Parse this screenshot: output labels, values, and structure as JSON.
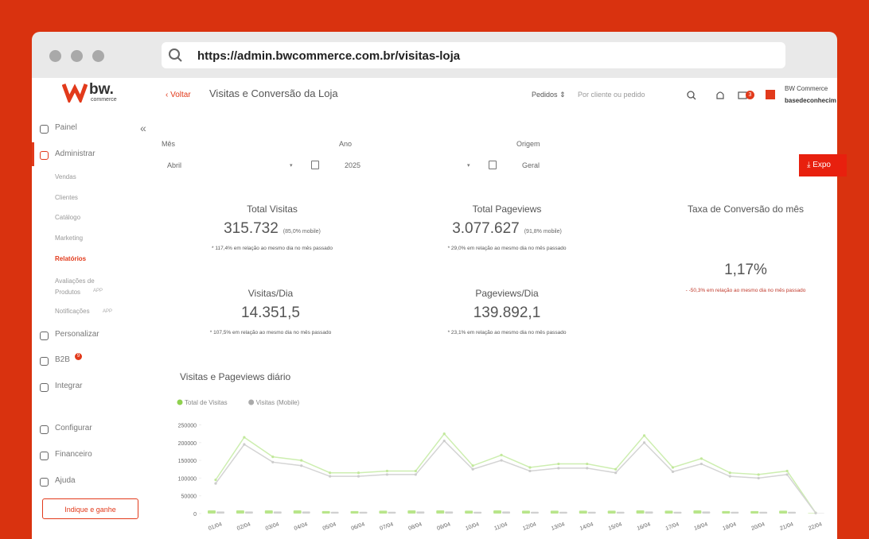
{
  "browser": {
    "url": "https://admin.bwcommerce.com.br/visitas-loja"
  },
  "logo": {
    "mark": "bw.",
    "sub": "commerce"
  },
  "header": {
    "back": "Voltar",
    "title": "Visitas e Conversão da Loja",
    "select": "Pedidos",
    "search_placeholder": "Por cliente ou pedido",
    "messages_badge": "3",
    "store_name": "BW Commerce",
    "store_user": "basedeconhecim"
  },
  "sidebar": {
    "top": [
      {
        "label": "Painel"
      },
      {
        "label": "Administrar"
      }
    ],
    "sub": [
      {
        "label": "Vendas"
      },
      {
        "label": "Clientes"
      },
      {
        "label": "Catálogo"
      },
      {
        "label": "Marketing"
      },
      {
        "label": "Relatórios"
      },
      {
        "label": "Avaliações de Produtos",
        "tag": "APP"
      },
      {
        "label": "Notificações",
        "tag": "APP"
      }
    ],
    "middle": [
      {
        "label": "Personalizar"
      },
      {
        "label": "B2B",
        "badge": "9"
      },
      {
        "label": "Integrar"
      }
    ],
    "bottom": [
      {
        "label": "Configurar"
      },
      {
        "label": "Financeiro"
      },
      {
        "label": "Ajuda"
      }
    ],
    "button": "Indique e ganhe"
  },
  "filters": [
    {
      "label": "Mês",
      "value": "Abril"
    },
    {
      "label": "Ano",
      "value": "2025"
    },
    {
      "label": "Origem",
      "value": "Geral"
    }
  ],
  "export_button": "Expo",
  "stats": [
    {
      "label": "Total Visitas",
      "value": "315.732",
      "note": "(85,0% mobile)",
      "change": "* 117,4% em relação ao mesmo dia no mês passado"
    },
    {
      "label": "Total Pageviews",
      "value": "3.077.627",
      "note": "(91,8% mobile)",
      "change": "* 29,0% em relação ao mesmo dia no mês passado"
    },
    {
      "label": "Taxa de Conversão do mês",
      "value": "1,17%",
      "change": "- -50,3% em relação ao mesmo dia no mês passado"
    },
    {
      "label": "Visitas/Dia",
      "value": "14.351,5",
      "change": "* 107,5% em relação ao mesmo dia no mês passado"
    },
    {
      "label": "Pageviews/Dia",
      "value": "139.892,1",
      "change": "* 23,1% em relação ao mesmo dia no mês passado"
    }
  ],
  "chart_data": {
    "type": "line",
    "title": "Visitas e Pageviews diário",
    "x": [
      "01/04",
      "02/04",
      "03/04",
      "04/04",
      "05/04",
      "06/04",
      "07/04",
      "08/04",
      "09/04",
      "10/04",
      "11/04",
      "12/04",
      "13/04",
      "14/04",
      "15/04",
      "16/04",
      "17/04",
      "18/04",
      "19/04",
      "20/04",
      "21/04",
      "22/04"
    ],
    "series": [
      {
        "name": "Total de Visitas",
        "color": "#8fd14f",
        "values": [
          95000,
          215000,
          160000,
          150000,
          115000,
          115000,
          120000,
          120000,
          225000,
          135000,
          165000,
          130000,
          140000,
          140000,
          125000,
          220000,
          130000,
          155000,
          115000,
          110000,
          120000,
          2000
        ],
        "bar_values": [
          9000,
          9000,
          9000,
          9000,
          7000,
          7000,
          8000,
          9000,
          9000,
          8000,
          9000,
          8000,
          8000,
          8000,
          8000,
          9000,
          8000,
          9000,
          7000,
          7000,
          8000,
          1000
        ]
      },
      {
        "name": "Visitas (Mobile)",
        "color": "#aaaaaa",
        "values": [
          85000,
          195000,
          145000,
          135000,
          105000,
          105000,
          110000,
          110000,
          205000,
          125000,
          150000,
          120000,
          128000,
          128000,
          115000,
          200000,
          118000,
          140000,
          105000,
          100000,
          110000,
          1500
        ],
        "bar_values": [
          6000,
          6000,
          6000,
          6000,
          5000,
          5000,
          5000,
          6000,
          6000,
          5000,
          6000,
          5000,
          5000,
          5000,
          5000,
          6000,
          5000,
          6000,
          5000,
          5000,
          5000,
          800
        ]
      }
    ],
    "ylim": [
      0,
      260000
    ],
    "yticks": [
      0,
      50000,
      100000,
      150000,
      200000,
      250000
    ]
  }
}
